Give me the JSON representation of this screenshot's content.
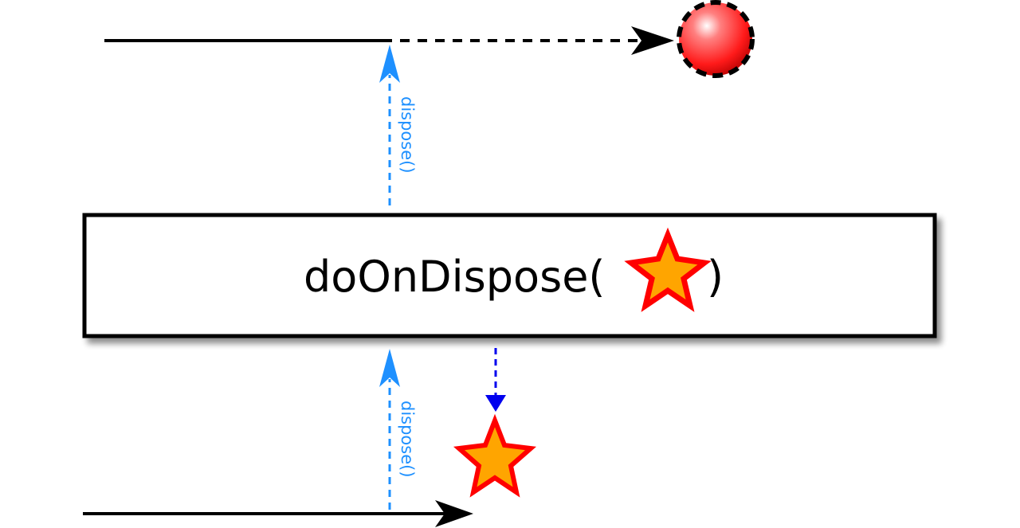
{
  "operator": {
    "prefix": "doOnDispose(",
    "suffix": ")",
    "argument_icon": "star-icon"
  },
  "signals": {
    "upper_dispose_label": "dispose()",
    "lower_dispose_label": "dispose()"
  },
  "icons": {
    "upper_end": "red-ball-icon",
    "side_effect": "star-icon"
  },
  "colors": {
    "timeline": "#000000",
    "dispose_arrow": "#1e90ff",
    "side_effect_arrow": "#0000ee",
    "star_fill": "#ffa500",
    "star_stroke": "#ff0000",
    "ball_fill": "#ff3333"
  }
}
